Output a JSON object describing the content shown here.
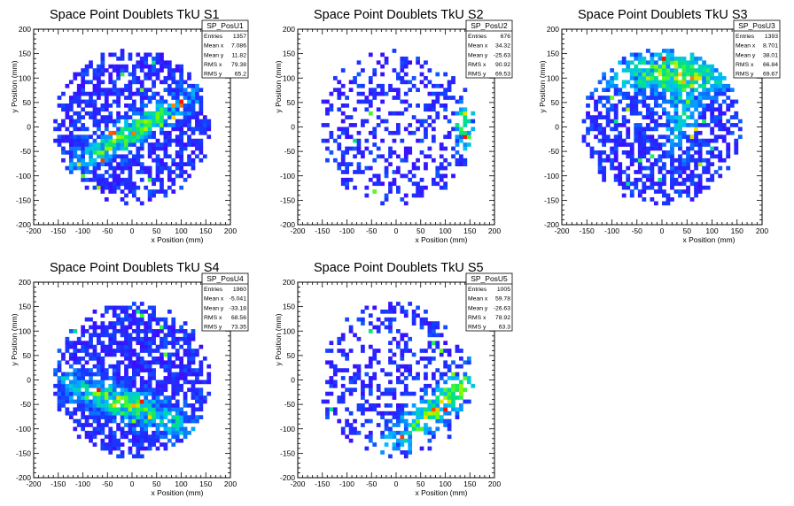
{
  "chart_data": [
    {
      "type": "heatmap",
      "title": "Space Point Doublets TkU S1",
      "xlabel": "x Position (mm)",
      "ylabel": "y Position (mm)",
      "xlim": [
        -200,
        200
      ],
      "ylim": [
        -200,
        200
      ],
      "xticks": [
        "-200",
        "-150",
        "-100",
        "-50",
        "0",
        "50",
        "100",
        "150",
        "200"
      ],
      "yticks": [
        "-200",
        "-150",
        "-100",
        "-50",
        "0",
        "50",
        "100",
        "150",
        "200"
      ],
      "stats": {
        "name": "SP_PosU1",
        "rows": [
          {
            "label": "Entries",
            "value": "1357"
          },
          {
            "label": "Mean x",
            "value": "7.086"
          },
          {
            "label": "Mean y",
            "value": "11.82"
          },
          {
            "label": "RMS x",
            "value": "79.38"
          },
          {
            "label": "RMS y",
            "value": "65.2"
          }
        ]
      },
      "pattern": {
        "seed": 11,
        "radius": 160,
        "density": 0.62,
        "hotspots": [
          {
            "x": 0,
            "y": -10,
            "angle": 30,
            "len": 130,
            "w": 18,
            "amp": 0.7
          }
        ]
      }
    },
    {
      "type": "heatmap",
      "title": "Space Point Doublets TkU S2",
      "xlabel": "x Position (mm)",
      "ylabel": "y Position (mm)",
      "xlim": [
        -200,
        200
      ],
      "ylim": [
        -200,
        200
      ],
      "xticks": [
        "-200",
        "-150",
        "-100",
        "-50",
        "0",
        "50",
        "100",
        "150",
        "200"
      ],
      "yticks": [
        "-200",
        "-150",
        "-100",
        "-50",
        "0",
        "50",
        "100",
        "150",
        "200"
      ],
      "stats": {
        "name": "SP_PosU2",
        "rows": [
          {
            "label": "Entries",
            "value": "676"
          },
          {
            "label": "Mean x",
            "value": "34.32"
          },
          {
            "label": "Mean y",
            "value": "-25.63"
          },
          {
            "label": "RMS x",
            "value": "90.92"
          },
          {
            "label": "RMS y",
            "value": "69.53"
          }
        ]
      },
      "pattern": {
        "seed": 23,
        "radius": 160,
        "density": 0.3,
        "hotspots": [
          {
            "x": 140,
            "y": 0,
            "angle": 90,
            "len": 50,
            "w": 14,
            "amp": 0.6
          }
        ]
      }
    },
    {
      "type": "heatmap",
      "title": "Space Point Doublets TkU S3",
      "xlabel": "x Position (mm)",
      "ylabel": "y Position (mm)",
      "xlim": [
        -200,
        200
      ],
      "ylim": [
        -200,
        200
      ],
      "xticks": [
        "-200",
        "-150",
        "-100",
        "-50",
        "0",
        "50",
        "100",
        "150",
        "200"
      ],
      "yticks": [
        "-200",
        "-150",
        "-100",
        "-50",
        "0",
        "50",
        "100",
        "150",
        "200"
      ],
      "stats": {
        "name": "SP_PosU3",
        "rows": [
          {
            "label": "Entries",
            "value": "1393"
          },
          {
            "label": "Mean x",
            "value": "8.701"
          },
          {
            "label": "Mean y",
            "value": "38.01"
          },
          {
            "label": "RMS x",
            "value": "66.84"
          },
          {
            "label": "RMS y",
            "value": "69.67"
          }
        ]
      },
      "pattern": {
        "seed": 37,
        "radius": 160,
        "density": 0.55,
        "hotspots": [
          {
            "x": 20,
            "y": 110,
            "angle": 0,
            "len": 120,
            "w": 30,
            "amp": 0.7
          },
          {
            "x": 40,
            "y": 20,
            "angle": 80,
            "len": 70,
            "w": 20,
            "amp": 0.5
          }
        ]
      }
    },
    {
      "type": "heatmap",
      "title": "Space Point Doublets TkU S4",
      "xlabel": "x Position (mm)",
      "ylabel": "y Position (mm)",
      "xlim": [
        -200,
        200
      ],
      "ylim": [
        -200,
        200
      ],
      "xticks": [
        "-200",
        "-150",
        "-100",
        "-50",
        "0",
        "50",
        "100",
        "150",
        "200"
      ],
      "yticks": [
        "-200",
        "-150",
        "-100",
        "-50",
        "0",
        "50",
        "100",
        "150",
        "200"
      ],
      "stats": {
        "name": "SP_PosU4",
        "rows": [
          {
            "label": "Entries",
            "value": "1960"
          },
          {
            "label": "Mean x",
            "value": "-5.041"
          },
          {
            "label": "Mean y",
            "value": "-33.18"
          },
          {
            "label": "RMS x",
            "value": "68.56"
          },
          {
            "label": "RMS y",
            "value": "73.35"
          }
        ]
      },
      "pattern": {
        "seed": 53,
        "radius": 160,
        "density": 0.7,
        "hotspots": [
          {
            "x": -10,
            "y": -50,
            "angle": -20,
            "len": 150,
            "w": 20,
            "amp": 0.7
          }
        ]
      }
    },
    {
      "type": "heatmap",
      "title": "Space Point Doublets TkU S5",
      "xlabel": "x Position (mm)",
      "ylabel": "y Position (mm)",
      "xlim": [
        -200,
        200
      ],
      "ylim": [
        -200,
        200
      ],
      "xticks": [
        "-200",
        "-150",
        "-100",
        "-50",
        "0",
        "50",
        "100",
        "150",
        "200"
      ],
      "yticks": [
        "-200",
        "-150",
        "-100",
        "-50",
        "0",
        "50",
        "100",
        "150",
        "200"
      ],
      "stats": {
        "name": "SP_PosU5",
        "rows": [
          {
            "label": "Entries",
            "value": "1005"
          },
          {
            "label": "Mean x",
            "value": "59.78"
          },
          {
            "label": "Mean y",
            "value": "-26.63"
          },
          {
            "label": "RMS x",
            "value": "78.92"
          },
          {
            "label": "RMS y",
            "value": "63.3"
          }
        ]
      },
      "pattern": {
        "seed": 71,
        "radius": 160,
        "density": 0.35,
        "hotspots": [
          {
            "x": 90,
            "y": -50,
            "angle": 40,
            "len": 140,
            "w": 20,
            "amp": 0.7
          }
        ]
      }
    }
  ]
}
